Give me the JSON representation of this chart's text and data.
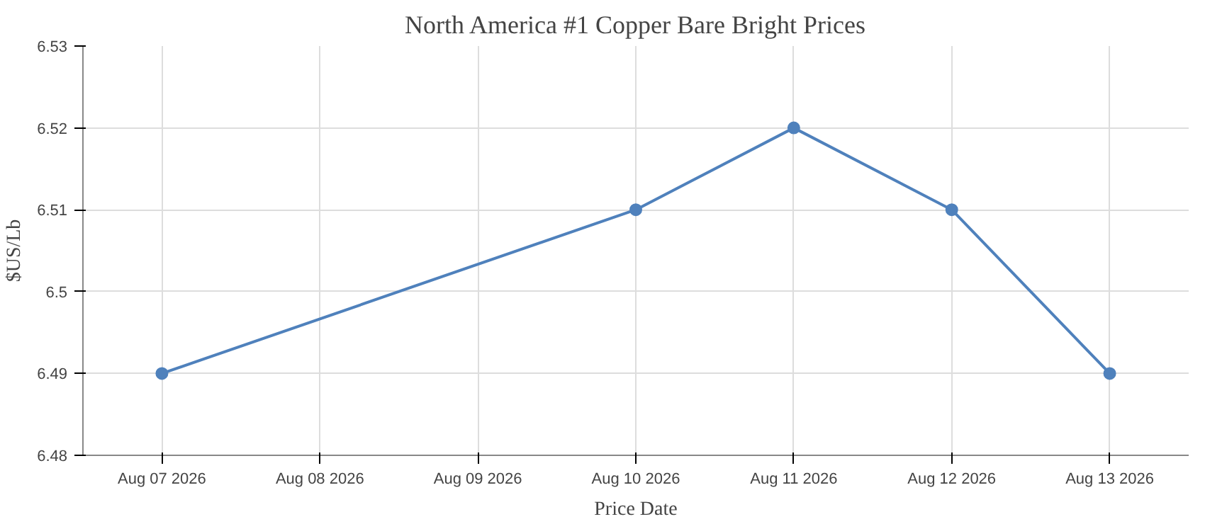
{
  "chart_data": {
    "type": "line",
    "title": "North America #1 Copper Bare Bright Prices",
    "xlabel": "Price Date",
    "ylabel": "$US/Lb",
    "x": [
      "2026-08-07",
      "2026-08-10",
      "2026-08-11",
      "2026-08-12",
      "2026-08-13"
    ],
    "series": [
      {
        "color": "#4f81bc",
        "values": [
          6.49,
          6.51,
          6.52,
          6.51,
          6.49
        ]
      }
    ],
    "xlim": [
      "2026-08-06T12:00",
      "2026-08-13T12:00"
    ],
    "xticks": [
      {
        "value": "2026-08-07",
        "label": "Aug 07 2026"
      },
      {
        "value": "2026-08-08",
        "label": "Aug 08 2026"
      },
      {
        "value": "2026-08-09",
        "label": "Aug 09 2026"
      },
      {
        "value": "2026-08-10",
        "label": "Aug 10 2026"
      },
      {
        "value": "2026-08-11",
        "label": "Aug 11 2026"
      },
      {
        "value": "2026-08-12",
        "label": "Aug 12 2026"
      },
      {
        "value": "2026-08-13",
        "label": "Aug 13 2026"
      }
    ],
    "ylim": [
      6.48,
      6.53
    ],
    "yticks": [
      6.48,
      6.49,
      6.5,
      6.51,
      6.52,
      6.53
    ],
    "grid": true,
    "marker": "circle",
    "line_style": "solid"
  }
}
